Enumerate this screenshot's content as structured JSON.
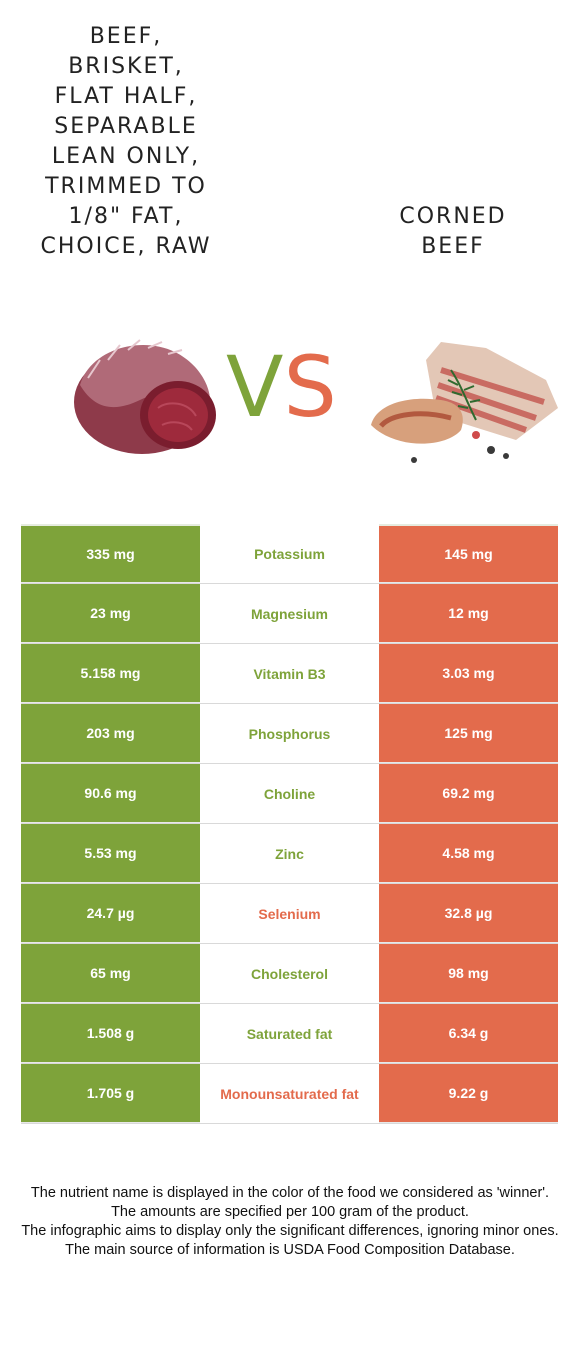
{
  "food_left": {
    "name": "Beef, brisket, flat half, separable lean only, trimmed to 1/8\" fat, choice, raw",
    "display_lines": "BEEF,\nBRISKET,\nFLAT HALF,\nSEPARABLE\nLEAN ONLY,\nTRIMMED TO\n1/8\" FAT,\nCHOICE, RAW",
    "color": "#7ea33a"
  },
  "food_right": {
    "name": "Corned beef",
    "display_lines": "CORNED\nBEEF",
    "color": "#e36b4c"
  },
  "vs": {
    "v": "V",
    "s": "S"
  },
  "rows": [
    {
      "left": "335 mg",
      "nutrient": "Potassium",
      "right": "145 mg",
      "winner": "left",
      "winner_color": "#7ea33a"
    },
    {
      "left": "23 mg",
      "nutrient": "Magnesium",
      "right": "12 mg",
      "winner": "left",
      "winner_color": "#7ea33a"
    },
    {
      "left": "5.158 mg",
      "nutrient": "Vitamin B3",
      "right": "3.03 mg",
      "winner": "left",
      "winner_color": "#7ea33a"
    },
    {
      "left": "203 mg",
      "nutrient": "Phosphorus",
      "right": "125 mg",
      "winner": "left",
      "winner_color": "#7ea33a"
    },
    {
      "left": "90.6 mg",
      "nutrient": "Choline",
      "right": "69.2 mg",
      "winner": "left",
      "winner_color": "#7ea33a"
    },
    {
      "left": "5.53 mg",
      "nutrient": "Zinc",
      "right": "4.58 mg",
      "winner": "left",
      "winner_color": "#7ea33a"
    },
    {
      "left": "24.7 µg",
      "nutrient": "Selenium",
      "right": "32.8 µg",
      "winner": "right",
      "winner_color": "#e36b4c"
    },
    {
      "left": "65 mg",
      "nutrient": "Cholesterol",
      "right": "98 mg",
      "winner": "left",
      "winner_color": "#7ea33a"
    },
    {
      "left": "1.508 g",
      "nutrient": "Saturated fat",
      "right": "6.34 g",
      "winner": "left",
      "winner_color": "#7ea33a"
    },
    {
      "left": "1.705 g",
      "nutrient": "Monounsaturated fat",
      "right": "9.22 g",
      "winner": "right",
      "winner_color": "#e36b4c"
    }
  ],
  "footer": {
    "line1": "The nutrient name is displayed in the color of the food we considered as 'winner'.",
    "line2": "The amounts are specified per 100 gram of the product.",
    "line3": "The infographic aims to display only the significant differences, ignoring minor ones.",
    "line4": "The main source of information is USDA Food Composition Database."
  }
}
